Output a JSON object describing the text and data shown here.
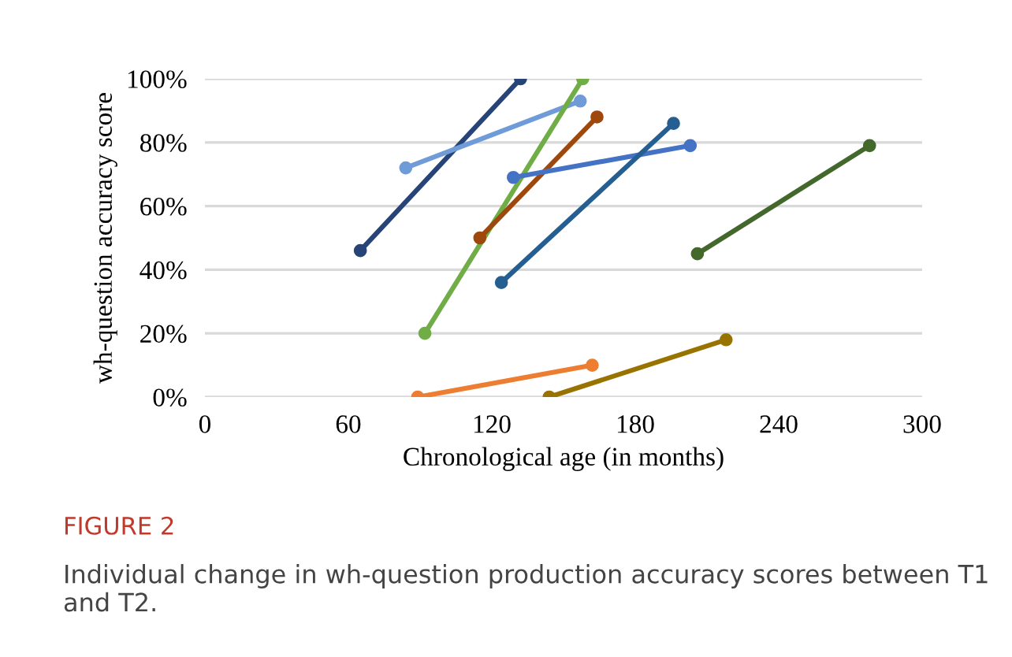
{
  "chart_data": {
    "type": "line",
    "xlabel": "Chronological age (in months)",
    "ylabel": "wh-question accuracy score",
    "xlim": [
      0,
      300
    ],
    "xticks": [
      0,
      60,
      120,
      180,
      240,
      300
    ],
    "ylim": [
      0,
      100
    ],
    "yticks": [
      {
        "value": 0,
        "label": "0%"
      },
      {
        "value": 20,
        "label": "20%"
      },
      {
        "value": 40,
        "label": "40%"
      },
      {
        "value": 60,
        "label": "60%"
      },
      {
        "value": 80,
        "label": "80%"
      },
      {
        "value": 100,
        "label": "100%"
      }
    ],
    "grid": "y",
    "legend": false,
    "marker": "circle",
    "line_style": "solid",
    "series": [
      {
        "color": "#264478",
        "x": [
          65,
          132
        ],
        "values": [
          46,
          100
        ]
      },
      {
        "color": "#6f9bd8",
        "x": [
          84,
          157
        ],
        "values": [
          72,
          93
        ]
      },
      {
        "color": "#70ad47",
        "x": [
          92,
          158
        ],
        "values": [
          20,
          100
        ]
      },
      {
        "color": "#9e480e",
        "x": [
          115,
          164
        ],
        "values": [
          50,
          88
        ]
      },
      {
        "color": "#4472c4",
        "x": [
          129,
          203
        ],
        "values": [
          69,
          79
        ]
      },
      {
        "color": "#255e91",
        "x": [
          124,
          196
        ],
        "values": [
          36,
          86
        ]
      },
      {
        "color": "#43682b",
        "x": [
          206,
          278
        ],
        "values": [
          45,
          79
        ]
      },
      {
        "color": "#ed7d31",
        "x": [
          89,
          162
        ],
        "values": [
          0,
          10
        ]
      },
      {
        "color": "#997300",
        "x": [
          144,
          218
        ],
        "values": [
          0,
          18
        ]
      }
    ],
    "annotations": [
      "FIGURE 2",
      "Individual change in wh-question production accuracy scores between T1 and T2."
    ]
  }
}
